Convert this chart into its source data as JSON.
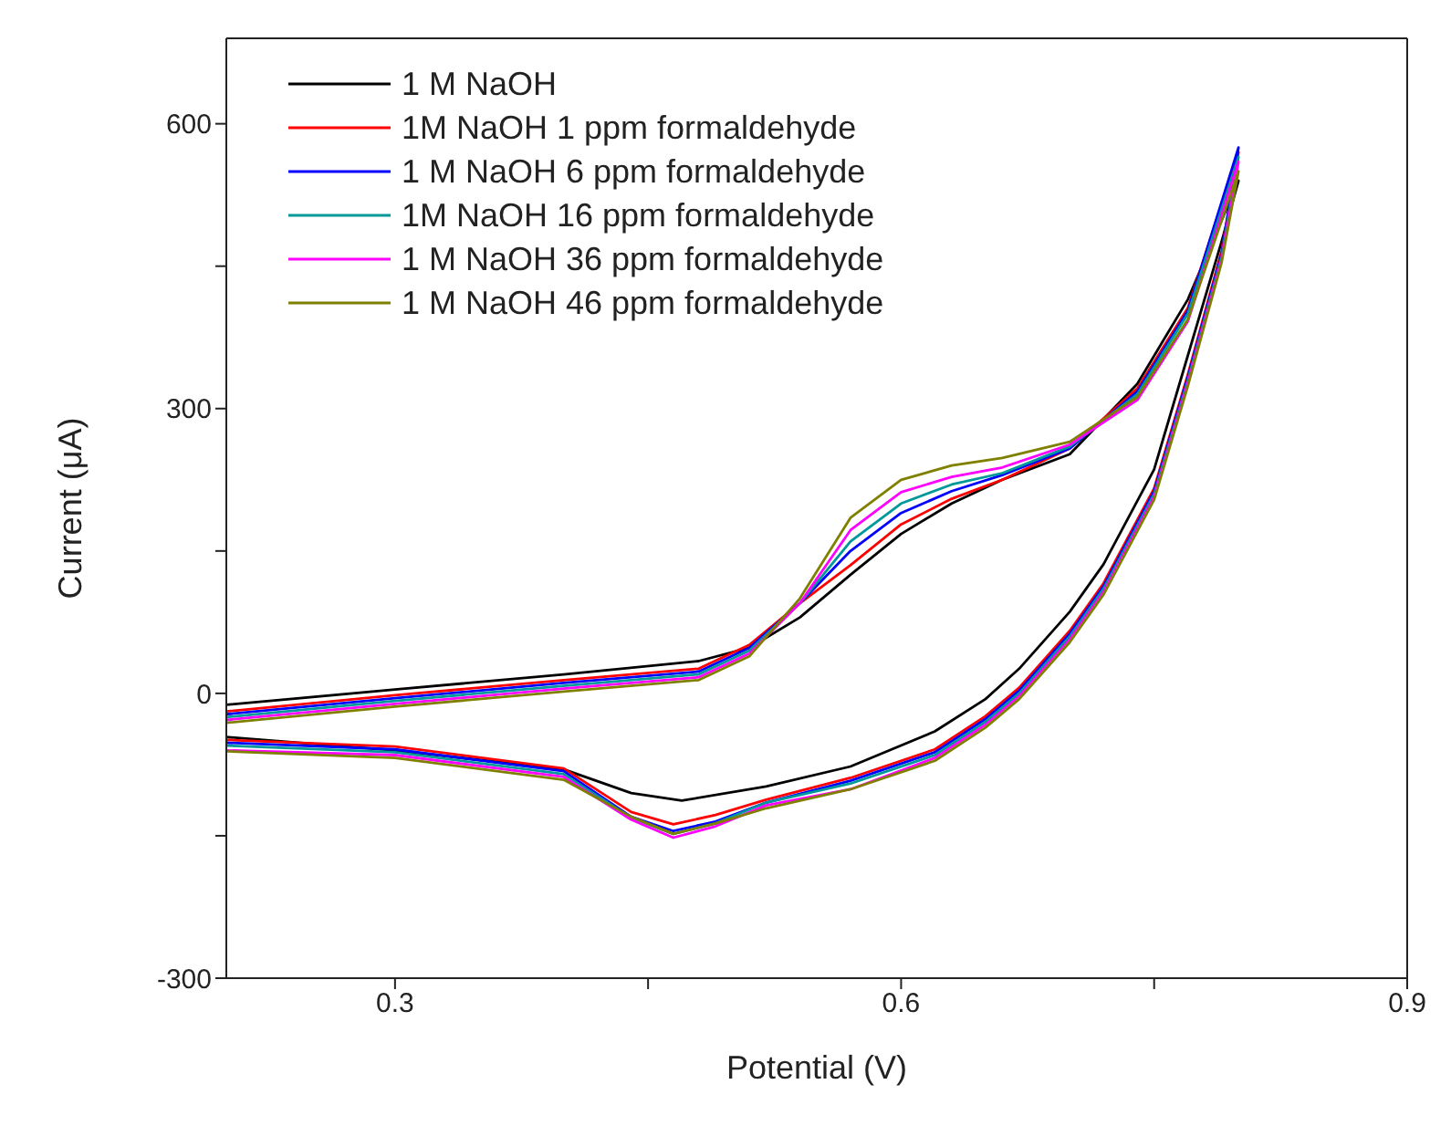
{
  "chart_data": {
    "type": "line",
    "xlabel": "Potential (V)",
    "ylabel": "Current (μA)",
    "xlim": [
      0.2,
      0.9
    ],
    "xticks": [
      0.3,
      {
        "value": 0.45,
        "label": null
      },
      0.6,
      {
        "value": 0.75,
        "label": null
      },
      0.9
    ],
    "ylim": [
      -300,
      690
    ],
    "yticks": [
      -300,
      {
        "value": -150,
        "label": null
      },
      0,
      {
        "value": 150,
        "label": null
      },
      300,
      {
        "value": 450,
        "label": null
      },
      600
    ],
    "legend": "top left",
    "marker": "none",
    "line_style": "solid",
    "series": [
      {
        "name": "1 M NaOH",
        "color": "#000000",
        "x": [
          0.2,
          0.3,
          0.4,
          0.48,
          0.51,
          0.54,
          0.57,
          0.6,
          0.63,
          0.66,
          0.7,
          0.74,
          0.77,
          0.8,
          0.79,
          0.77,
          0.75,
          0.72,
          0.7,
          0.67,
          0.65,
          0.62,
          0.57,
          0.52,
          0.47,
          0.44,
          0.4,
          0.3,
          0.2
        ],
        "values": [
          -12,
          4,
          20,
          34,
          48,
          80,
          125,
          168,
          200,
          225,
          252,
          326,
          415,
          540,
          476,
          356,
          236,
          136,
          86,
          26,
          -6,
          -40,
          -77,
          -98,
          -113,
          -105,
          -80,
          -60,
          -46
        ]
      },
      {
        "name": "1M NaOH 1 ppm formaldehyde",
        "color": "#ff0000",
        "x": [
          0.2,
          0.3,
          0.4,
          0.48,
          0.51,
          0.54,
          0.57,
          0.6,
          0.63,
          0.66,
          0.7,
          0.74,
          0.77,
          0.8,
          0.79,
          0.77,
          0.75,
          0.72,
          0.7,
          0.67,
          0.65,
          0.62,
          0.57,
          0.52,
          0.49,
          0.465,
          0.44,
          0.4,
          0.3,
          0.2
        ],
        "values": [
          -19,
          -2,
          14,
          26,
          51,
          95,
          135,
          178,
          205,
          225,
          258,
          321,
          406,
          570,
          466,
          336,
          216,
          116,
          66,
          6,
          -24,
          -59,
          -89,
          -112,
          -128,
          -138,
          -125,
          -79,
          -56,
          -49
        ]
      },
      {
        "name": "1 M NaOH 6 ppm formaldehyde",
        "color": "#0000ff",
        "x": [
          0.2,
          0.3,
          0.4,
          0.48,
          0.51,
          0.54,
          0.57,
          0.6,
          0.63,
          0.66,
          0.7,
          0.74,
          0.77,
          0.8,
          0.79,
          0.77,
          0.75,
          0.72,
          0.7,
          0.67,
          0.65,
          0.62,
          0.57,
          0.52,
          0.49,
          0.465,
          0.44,
          0.4,
          0.3,
          0.2
        ],
        "values": [
          -22,
          -5,
          11,
          23,
          48,
          95,
          150,
          190,
          213,
          230,
          258,
          318,
          403,
          575,
          463,
          333,
          213,
          113,
          63,
          3,
          -27,
          -62,
          -92,
          -115,
          -135,
          -145,
          -130,
          -82,
          -59,
          -52
        ]
      },
      {
        "name": "1M NaOH 16 ppm formaldehyde",
        "color": "#009999",
        "x": [
          0.2,
          0.3,
          0.4,
          0.48,
          0.51,
          0.54,
          0.57,
          0.6,
          0.63,
          0.66,
          0.7,
          0.74,
          0.77,
          0.8,
          0.79,
          0.77,
          0.75,
          0.72,
          0.7,
          0.67,
          0.65,
          0.62,
          0.57,
          0.52,
          0.49,
          0.465,
          0.44,
          0.4,
          0.3,
          0.2
        ],
        "values": [
          -25,
          -8,
          8,
          20,
          45,
          95,
          160,
          200,
          220,
          232,
          260,
          315,
          400,
          565,
          460,
          330,
          210,
          110,
          60,
          0,
          -30,
          -65,
          -95,
          -115,
          -137,
          -148,
          -131,
          -85,
          -62,
          -55
        ]
      },
      {
        "name": "1 M NaOH 36 ppm formaldehyde",
        "color": "#ff00ff",
        "x": [
          0.2,
          0.3,
          0.4,
          0.48,
          0.51,
          0.54,
          0.57,
          0.6,
          0.63,
          0.66,
          0.7,
          0.74,
          0.77,
          0.8,
          0.79,
          0.77,
          0.75,
          0.72,
          0.7,
          0.67,
          0.65,
          0.62,
          0.57,
          0.52,
          0.49,
          0.465,
          0.44,
          0.4,
          0.3,
          0.2
        ],
        "values": [
          -28,
          -11,
          5,
          17,
          42,
          95,
          172,
          212,
          228,
          238,
          262,
          309,
          392,
          560,
          457,
          327,
          207,
          107,
          57,
          -3,
          -33,
          -68,
          -101,
          -118,
          -140,
          -152,
          -133,
          -88,
          -65,
          -60
        ]
      },
      {
        "name": "1 M NaOH 46 ppm formaldehyde",
        "color": "#808000",
        "x": [
          0.2,
          0.3,
          0.4,
          0.48,
          0.51,
          0.54,
          0.57,
          0.6,
          0.63,
          0.66,
          0.7,
          0.74,
          0.77,
          0.8,
          0.79,
          0.77,
          0.75,
          0.72,
          0.7,
          0.67,
          0.65,
          0.62,
          0.57,
          0.52,
          0.49,
          0.465,
          0.44,
          0.4,
          0.3,
          0.2
        ],
        "values": [
          -31,
          -14,
          2,
          14,
          39,
          100,
          185,
          225,
          240,
          248,
          265,
          312,
          394,
          550,
          454,
          324,
          204,
          104,
          54,
          -6,
          -36,
          -71,
          -101,
          -121,
          -137,
          -148,
          -130,
          -91,
          -68,
          -61
        ]
      }
    ]
  }
}
